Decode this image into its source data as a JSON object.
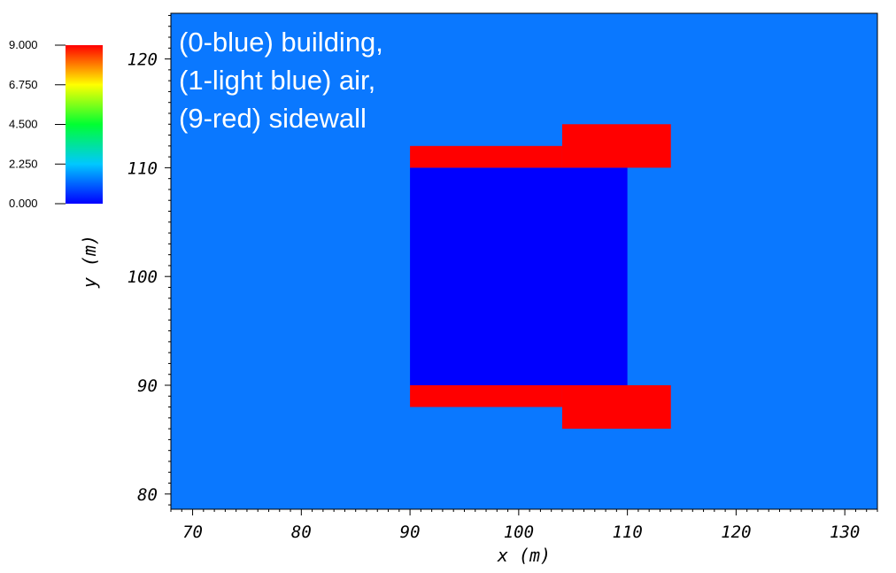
{
  "chart_data": {
    "type": "heatmap",
    "title": "",
    "xlabel": "x (m)",
    "ylabel": "y (m)",
    "xlim": [
      68,
      133
    ],
    "ylim": [
      78.6,
      124.2
    ],
    "x_ticks": [
      "70",
      "80",
      "90",
      "100",
      "110",
      "120",
      "130"
    ],
    "y_ticks": [
      "80",
      "90",
      "100",
      "110",
      "120"
    ],
    "background_value": 1,
    "regions": [
      {
        "name": "building",
        "value": 0,
        "x": [
          90,
          110
        ],
        "y": [
          90,
          110
        ]
      },
      {
        "name": "sidewall",
        "value": 9,
        "x": [
          90,
          104
        ],
        "y": [
          110,
          112
        ]
      },
      {
        "name": "sidewall",
        "value": 9,
        "x": [
          104,
          114
        ],
        "y": [
          110,
          114
        ]
      },
      {
        "name": "sidewall",
        "value": 9,
        "x": [
          90,
          104
        ],
        "y": [
          88,
          90
        ]
      },
      {
        "name": "sidewall",
        "value": 9,
        "x": [
          104,
          114
        ],
        "y": [
          86,
          90
        ]
      }
    ],
    "colorbar": {
      "range": [
        0,
        9
      ],
      "ticks": [
        "0.000",
        "2.250",
        "4.500",
        "6.750",
        "9.000"
      ],
      "colors": [
        "#0000ff",
        "#00c8ff",
        "#00ff32",
        "#ffff00",
        "#ff0000"
      ]
    },
    "annotations": [
      "(0-blue) building,",
      "(1-light blue) air,",
      "(9-red) sidewall"
    ],
    "value_colors": {
      "0": "#0000ff",
      "1": "#0a78ff",
      "9": "#ff0000"
    }
  }
}
